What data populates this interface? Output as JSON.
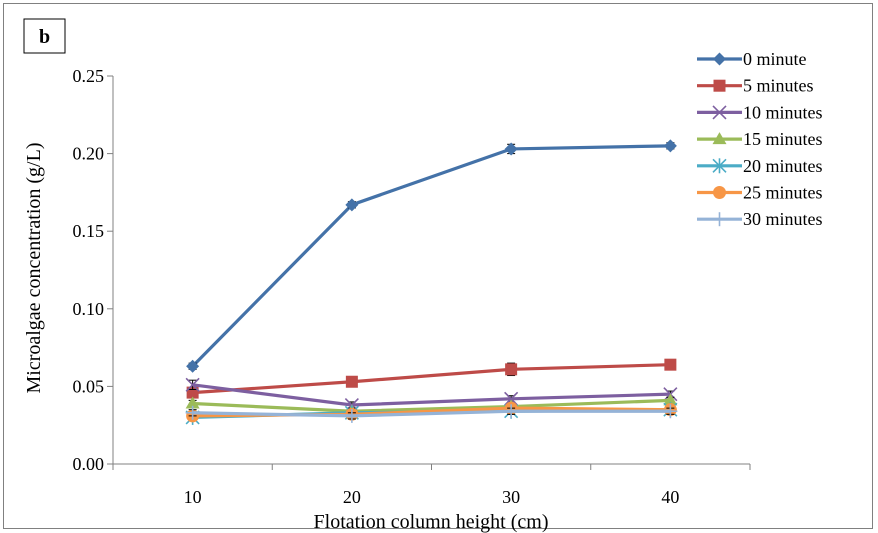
{
  "panel_label": "b",
  "chart_data": {
    "type": "line",
    "title": "",
    "xlabel": "Flotation column height (cm)",
    "ylabel": "Microalgae concentration (g/L)",
    "x": [
      10,
      20,
      30,
      40
    ],
    "x_tick_labels": [
      "10",
      "20",
      "30",
      "40"
    ],
    "xlim": [
      5,
      45
    ],
    "ylim": [
      0,
      0.25
    ],
    "y_ticks": [
      0,
      0.05,
      0.1,
      0.15,
      0.2,
      0.25
    ],
    "y_tick_labels": [
      "0.00",
      "0.05",
      "0.10",
      "0.15",
      "0.20",
      "0.25"
    ],
    "grid": false,
    "legend_position": "top-right",
    "error_bars": true,
    "series": [
      {
        "name": "0 minute",
        "values": [
          0.063,
          0.167,
          0.203,
          0.205
        ],
        "color": "#4472A8",
        "marker": "diamond",
        "error": [
          0.002,
          0.002,
          0.003,
          0.002
        ]
      },
      {
        "name": "5 minutes",
        "values": [
          0.046,
          0.053,
          0.061,
          0.064
        ],
        "color": "#BE4B48",
        "marker": "square",
        "error": [
          0.003,
          0.002,
          0.004,
          0.002
        ]
      },
      {
        "name": "10 minutes",
        "values": [
          0.051,
          0.038,
          0.042,
          0.045
        ],
        "color": "#7D5FA0",
        "marker": "x",
        "error": [
          0.003,
          0.002,
          0.002,
          0.002
        ]
      },
      {
        "name": "15 minutes",
        "values": [
          0.039,
          0.034,
          0.037,
          0.041
        ],
        "color": "#9BBB59",
        "marker": "triangle",
        "error": [
          0.002,
          0.002,
          0.002,
          0.002
        ]
      },
      {
        "name": "20 minutes",
        "values": [
          0.03,
          0.033,
          0.034,
          0.035
        ],
        "color": "#4BACC6",
        "marker": "asterisk",
        "error": [
          0.002,
          0.002,
          0.002,
          0.002
        ]
      },
      {
        "name": "25 minutes",
        "values": [
          0.031,
          0.032,
          0.036,
          0.035
        ],
        "color": "#F79646",
        "marker": "circle",
        "error": [
          0.002,
          0.002,
          0.002,
          0.002
        ]
      },
      {
        "name": "30 minutes",
        "values": [
          0.033,
          0.031,
          0.034,
          0.034
        ],
        "color": "#95B3D7",
        "marker": "plus",
        "error": [
          0.002,
          0.002,
          0.002,
          0.002
        ]
      }
    ]
  }
}
